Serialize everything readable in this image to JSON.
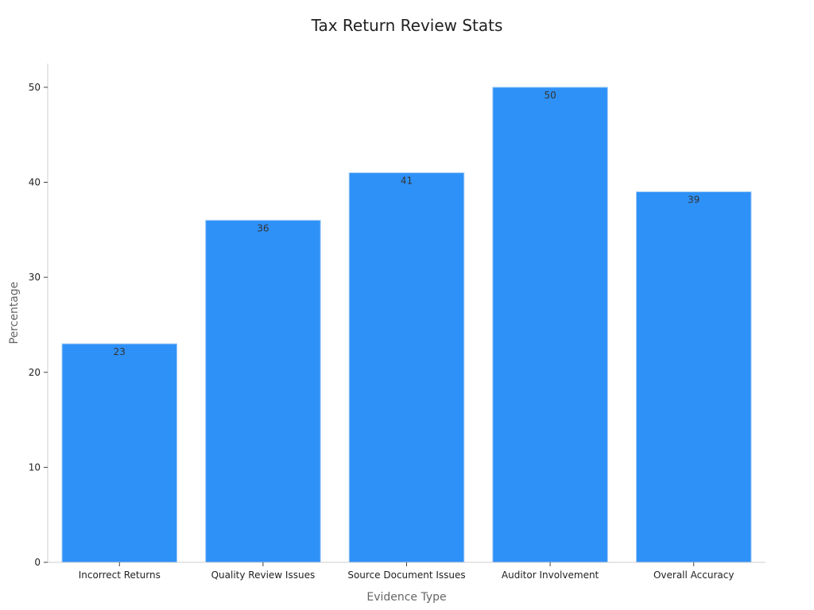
{
  "chart_data": {
    "type": "bar",
    "title": "Tax Return Review Stats",
    "xlabel": "Evidence Type",
    "ylabel": "Percentage",
    "categories": [
      "Incorrect Returns",
      "Quality Review Issues",
      "Source Document Issues",
      "Auditor Involvement",
      "Overall Accuracy"
    ],
    "values": [
      23,
      36,
      41,
      50,
      39
    ],
    "ylim": [
      0,
      52.5
    ],
    "yticks": [
      0,
      10,
      20,
      30,
      40,
      50
    ],
    "grid": false,
    "bar_color": "#2e91f8",
    "data_labels": true
  }
}
